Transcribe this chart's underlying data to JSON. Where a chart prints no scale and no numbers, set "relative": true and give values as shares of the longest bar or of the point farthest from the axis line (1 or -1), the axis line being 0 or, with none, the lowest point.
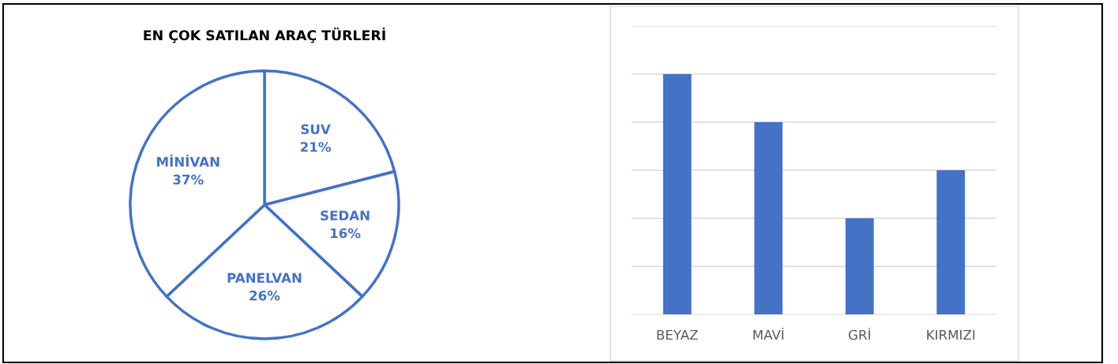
{
  "chart_data": [
    {
      "type": "pie",
      "title": "EN ÇOK SATILAN ARAÇ TÜRLERİ",
      "categories": [
        "SUV",
        "SEDAN",
        "PANELVAN",
        "MİNİVAN"
      ],
      "values": [
        21,
        16,
        26,
        37
      ],
      "value_labels": [
        "21%",
        "16%",
        "26%",
        "37%"
      ],
      "colors": [
        "#ffffff",
        "#ffffff",
        "#ffffff",
        "#ffffff"
      ],
      "legend": false
    },
    {
      "type": "bar",
      "relative": true,
      "categories": [
        "BEYAZ",
        "MAVİ",
        "GRİ",
        "KIRMIZI"
      ],
      "values": [
        1,
        0.8,
        0.4,
        0.6
      ],
      "color": "#4472c4",
      "grid": "y",
      "legend": false
    }
  ]
}
